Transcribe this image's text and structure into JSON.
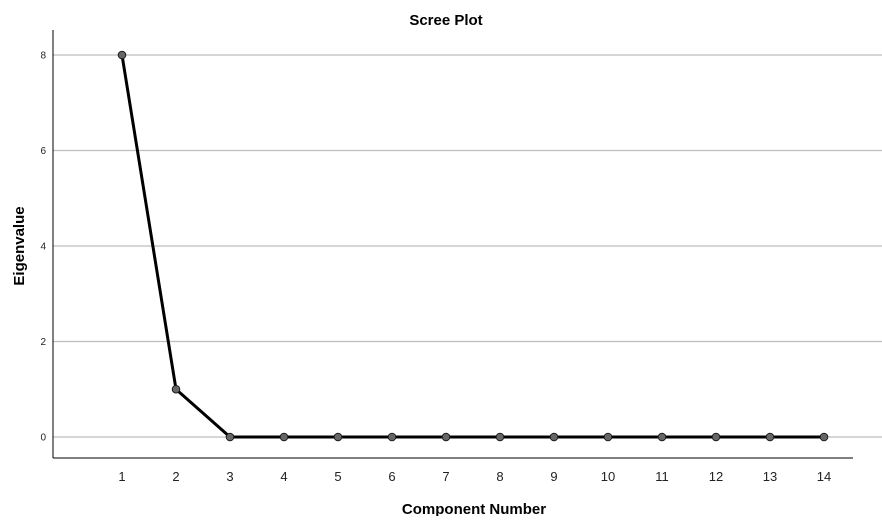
{
  "chart_data": {
    "type": "line",
    "title": "Scree Plot",
    "xlabel": "Component Number",
    "ylabel": "Eigenvalue",
    "x": [
      1,
      2,
      3,
      4,
      5,
      6,
      7,
      8,
      9,
      10,
      11,
      12,
      13,
      14
    ],
    "series": [
      {
        "values": [
          8,
          1,
          0,
          0,
          0,
          0,
          0,
          0,
          0,
          0,
          0,
          0,
          0,
          0
        ]
      }
    ],
    "xticks": [
      "1",
      "2",
      "3",
      "4",
      "5",
      "6",
      "7",
      "8",
      "9",
      "10",
      "11",
      "12",
      "13",
      "14"
    ],
    "yticks": [
      "0",
      "2",
      "4",
      "6",
      "8"
    ],
    "ylim": [
      0,
      8
    ],
    "grid": "horizontal",
    "colors": {
      "line": "#000000",
      "marker_fill": "#666666",
      "grid": "#bdbdbd",
      "axis": "#000000"
    }
  }
}
